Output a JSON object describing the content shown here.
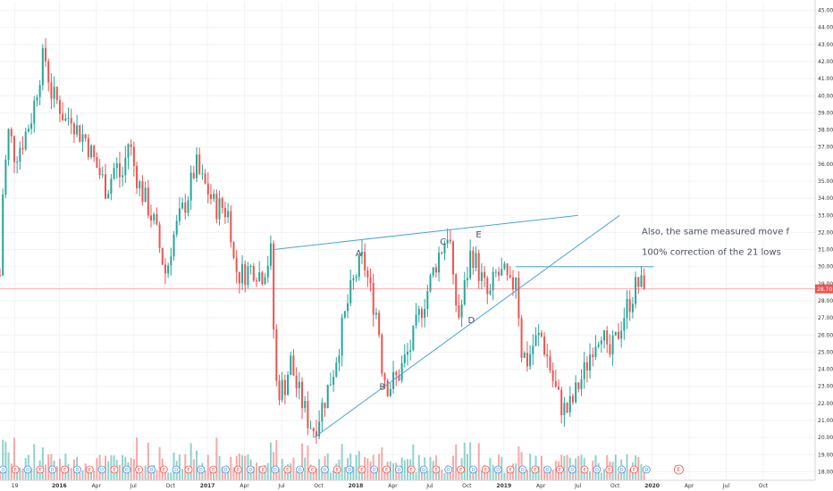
{
  "chart_data": {
    "type": "candlestick",
    "price_axis": {
      "min": 17.5,
      "max": 45.5,
      "ticks": [
        "18.00",
        "19.00",
        "20.00",
        "21.00",
        "22.00",
        "23.00",
        "24.00",
        "25.00",
        "26.00",
        "27.00",
        "28.00",
        "29.00",
        "30.00",
        "31.00",
        "32.00",
        "33.00",
        "34.00",
        "35.00",
        "36.00",
        "37.00",
        "38.00",
        "39.00",
        "40.00",
        "41.00",
        "42.00",
        "43.00",
        "44.00",
        "45.00"
      ],
      "tick_values": [
        18,
        19,
        20,
        21,
        22,
        23,
        24,
        25,
        26,
        27,
        28,
        29,
        30,
        31,
        32,
        33,
        34,
        35,
        36,
        37,
        38,
        39,
        40,
        41,
        42,
        43,
        44,
        45
      ]
    },
    "time_axis": {
      "start": 2015.6,
      "end": 2021.1,
      "labels": [
        {
          "text": "19",
          "t": 2015.7
        },
        {
          "text": "2016",
          "t": 2016.0
        },
        {
          "text": "Apr",
          "t": 2016.25
        },
        {
          "text": "Jul",
          "t": 2016.5
        },
        {
          "text": "Oct",
          "t": 2016.75
        },
        {
          "text": "2017",
          "t": 2017.0
        },
        {
          "text": "Apr",
          "t": 2017.25
        },
        {
          "text": "Jul",
          "t": 2017.5
        },
        {
          "text": "Oct",
          "t": 2017.75
        },
        {
          "text": "2018",
          "t": 2018.0
        },
        {
          "text": "Apr",
          "t": 2018.25
        },
        {
          "text": "Jul",
          "t": 2018.5
        },
        {
          "text": "Oct",
          "t": 2018.75
        },
        {
          "text": "2019",
          "t": 2019.0
        },
        {
          "text": "Apr",
          "t": 2019.25
        },
        {
          "text": "Jul",
          "t": 2019.5
        },
        {
          "text": "Oct",
          "t": 2019.75
        },
        {
          "text": "2020",
          "t": 2020.0
        },
        {
          "text": "Apr",
          "t": 2020.25
        },
        {
          "text": "Jul",
          "t": 2020.5
        },
        {
          "text": "Oct",
          "t": 2020.75
        }
      ]
    },
    "current_price": {
      "label": "28.70",
      "value": 28.7
    },
    "price_path": [
      [
        2015.6,
        29.5
      ],
      [
        2015.62,
        34.5
      ],
      [
        2015.66,
        38.0
      ],
      [
        2015.7,
        36.5
      ],
      [
        2015.76,
        37.5
      ],
      [
        2015.82,
        39.0
      ],
      [
        2015.86,
        41.0
      ],
      [
        2015.9,
        42.5
      ],
      [
        2015.95,
        40.0
      ],
      [
        2016.0,
        39.5
      ],
      [
        2016.04,
        38.5
      ],
      [
        2016.08,
        39.0
      ],
      [
        2016.12,
        38.0
      ],
      [
        2016.18,
        37.5
      ],
      [
        2016.22,
        36.5
      ],
      [
        2016.27,
        35.5
      ],
      [
        2016.32,
        34.5
      ],
      [
        2016.38,
        36.0
      ],
      [
        2016.42,
        35.0
      ],
      [
        2016.47,
        37.5
      ],
      [
        2016.5,
        36.0
      ],
      [
        2016.55,
        34.5
      ],
      [
        2016.6,
        33.5
      ],
      [
        2016.64,
        32.5
      ],
      [
        2016.68,
        31.0
      ],
      [
        2016.72,
        29.5
      ],
      [
        2016.76,
        31.5
      ],
      [
        2016.82,
        33.0
      ],
      [
        2016.88,
        34.5
      ],
      [
        2016.92,
        36.0
      ],
      [
        2016.96,
        35.0
      ],
      [
        2017.0,
        34.5
      ],
      [
        2017.05,
        33.5
      ],
      [
        2017.1,
        33.5
      ],
      [
        2017.15,
        33.0
      ],
      [
        2017.18,
        30.0
      ],
      [
        2017.22,
        29.5
      ],
      [
        2017.27,
        29.8
      ],
      [
        2017.32,
        30.0
      ],
      [
        2017.36,
        29.5
      ],
      [
        2017.4,
        30.2
      ],
      [
        2017.44,
        31.0
      ],
      [
        2017.45,
        23.5
      ],
      [
        2017.48,
        22.8
      ],
      [
        2017.52,
        23.0
      ],
      [
        2017.56,
        24.5
      ],
      [
        2017.6,
        23.0
      ],
      [
        2017.64,
        22.0
      ],
      [
        2017.68,
        21.0
      ],
      [
        2017.72,
        20.5
      ],
      [
        2017.76,
        21.5
      ],
      [
        2017.8,
        22.5
      ],
      [
        2017.85,
        24.0
      ],
      [
        2017.9,
        26.0
      ],
      [
        2017.95,
        28.0
      ],
      [
        2018.0,
        29.5
      ],
      [
        2018.05,
        30.5
      ],
      [
        2018.1,
        28.5
      ],
      [
        2018.15,
        27.0
      ],
      [
        2018.18,
        24.0
      ],
      [
        2018.22,
        23.0
      ],
      [
        2018.28,
        23.5
      ],
      [
        2018.33,
        24.5
      ],
      [
        2018.38,
        25.5
      ],
      [
        2018.44,
        27.5
      ],
      [
        2018.5,
        29.0
      ],
      [
        2018.55,
        30.5
      ],
      [
        2018.6,
        31.5
      ],
      [
        2018.63,
        32.3
      ],
      [
        2018.66,
        28.5
      ],
      [
        2018.7,
        27.0
      ],
      [
        2018.74,
        29.0
      ],
      [
        2018.78,
        31.0
      ],
      [
        2018.82,
        30.0
      ],
      [
        2018.86,
        29.0
      ],
      [
        2018.9,
        28.0
      ],
      [
        2018.94,
        29.5
      ],
      [
        2019.0,
        29.5
      ],
      [
        2019.05,
        28.5
      ],
      [
        2019.08,
        29.8
      ],
      [
        2019.12,
        25.0
      ],
      [
        2019.16,
        24.5
      ],
      [
        2019.2,
        25.5
      ],
      [
        2019.25,
        26.0
      ],
      [
        2019.3,
        24.5
      ],
      [
        2019.34,
        23.0
      ],
      [
        2019.38,
        22.0
      ],
      [
        2019.42,
        21.5
      ],
      [
        2019.46,
        22.0
      ],
      [
        2019.5,
        23.0
      ],
      [
        2019.55,
        24.0
      ],
      [
        2019.6,
        25.5
      ],
      [
        2019.66,
        26.5
      ],
      [
        2019.7,
        24.5
      ],
      [
        2019.75,
        25.5
      ],
      [
        2019.8,
        27.0
      ],
      [
        2019.85,
        28.0
      ],
      [
        2019.9,
        29.0
      ],
      [
        2019.95,
        28.7
      ]
    ],
    "volume_scale": 1.0,
    "annotations": [
      {
        "text": "Also, the same measured move f",
        "t": 2019.93,
        "price": 31.9
      },
      {
        "text": "100% correction of the 21 lows",
        "t": 2019.93,
        "price": 30.7
      }
    ],
    "point_labels": [
      {
        "text": "A",
        "t": 2018.02,
        "price": 30.6
      },
      {
        "text": "B",
        "t": 2018.18,
        "price": 22.8
      },
      {
        "text": "C",
        "t": 2018.59,
        "price": 31.3
      },
      {
        "text": "D",
        "t": 2018.78,
        "price": 26.7
      },
      {
        "text": "E",
        "t": 2018.83,
        "price": 31.7
      }
    ],
    "trend_lines": [
      {
        "name": "upper-wedge-line",
        "from": [
          2017.44,
          31.0
        ],
        "to": [
          2019.5,
          33.0
        ]
      },
      {
        "name": "lower-wedge-line",
        "from": [
          2017.72,
          20.0
        ],
        "to": [
          2019.78,
          33.0
        ]
      },
      {
        "name": "resistance-level-line",
        "from": [
          2019.08,
          30.0
        ],
        "to": [
          2020.01,
          30.0
        ]
      }
    ],
    "event_badges": {
      "dividend_label": "D",
      "earnings_label": "E",
      "future_earnings": {
        "label": "E",
        "t": 2020.18
      }
    }
  }
}
